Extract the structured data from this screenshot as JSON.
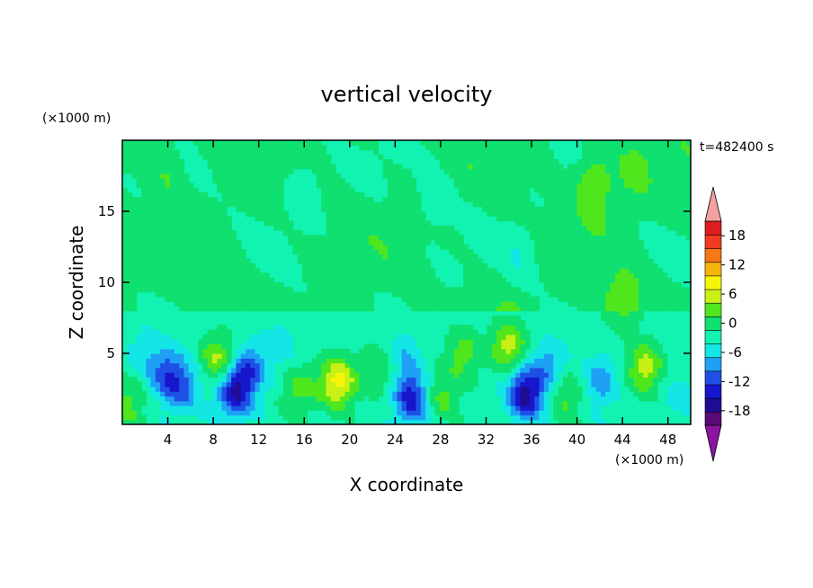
{
  "chart_data": {
    "type": "heatmap",
    "title": "vertical velocity",
    "xlabel": "X coordinate",
    "ylabel": "Z coordinate",
    "x_unit": "(×1000 m)",
    "y_unit": "(×1000 m)",
    "time_label": "t=482400 s",
    "xlim": [
      0,
      50
    ],
    "ylim": [
      0,
      20
    ],
    "x_ticks": [
      4,
      8,
      12,
      16,
      20,
      24,
      28,
      32,
      36,
      40,
      44,
      48
    ],
    "y_ticks": [
      5,
      10,
      15
    ],
    "colorbar": {
      "levels": [
        -21,
        -18,
        -15,
        -12,
        -9,
        -6,
        -3,
        0,
        3,
        6,
        9,
        12,
        15,
        18,
        21
      ],
      "tick_labels": [
        "18",
        "12",
        "6",
        "0",
        "-6",
        "-12",
        "-18"
      ],
      "tick_values": [
        18,
        12,
        6,
        0,
        -6,
        -12,
        -18
      ],
      "colors": [
        "#5a0a78",
        "#1e0c94",
        "#1616cc",
        "#1e50e6",
        "#1ea0f5",
        "#14e6e6",
        "#12f2b0",
        "#0fe070",
        "#50e61e",
        "#c8f014",
        "#f5f50a",
        "#f5b40a",
        "#f57814",
        "#f03c1e",
        "#dc1e1e"
      ],
      "under_color": "#8c14a0",
      "over_color": "#f5a0a0"
    },
    "features": [
      {
        "x": 4.0,
        "z": 3.5,
        "w": -9
      },
      {
        "x": 5.5,
        "z": 2.5,
        "w": -6
      },
      {
        "x": 8.5,
        "z": 4.5,
        "w": 9
      },
      {
        "x": 9.8,
        "z": 2.2,
        "w": -12
      },
      {
        "x": 11.0,
        "z": 3.8,
        "w": -9
      },
      {
        "x": 15.5,
        "z": 2.5,
        "w": 6
      },
      {
        "x": 19.0,
        "z": 3.0,
        "w": 12
      },
      {
        "x": 23.0,
        "z": 4.0,
        "w": 6
      },
      {
        "x": 25.5,
        "z": 1.8,
        "w": -12
      },
      {
        "x": 24.5,
        "z": 4.5,
        "w": -6
      },
      {
        "x": 28.0,
        "z": 2.0,
        "w": 6
      },
      {
        "x": 30.0,
        "z": 5.0,
        "w": 6
      },
      {
        "x": 34.0,
        "z": 5.5,
        "w": 9
      },
      {
        "x": 35.5,
        "z": 2.2,
        "w": -15
      },
      {
        "x": 37.5,
        "z": 4.0,
        "w": -6
      },
      {
        "x": 39.0,
        "z": 2.0,
        "w": 6
      },
      {
        "x": 42.0,
        "z": 3.0,
        "w": -6
      },
      {
        "x": 46.0,
        "z": 4.0,
        "w": 9
      },
      {
        "x": 49.0,
        "z": 2.0,
        "w": -3
      },
      {
        "x": 0.5,
        "z": 1.5,
        "w": 6
      },
      {
        "x": 2.0,
        "z": 5.0,
        "w": -3
      },
      {
        "x": 14.0,
        "z": 5.5,
        "w": -3
      },
      {
        "x": 44.0,
        "z": 8.5,
        "w": 6
      },
      {
        "x": 41.5,
        "z": 17.0,
        "w": 6
      },
      {
        "x": 45.0,
        "z": 18.0,
        "w": 3
      },
      {
        "x": 27.5,
        "z": 16.0,
        "w": -3
      },
      {
        "x": 16.0,
        "z": 17.0,
        "w": -3
      },
      {
        "x": 4.0,
        "z": 18.0,
        "w": 3
      },
      {
        "x": 35.0,
        "z": 12.0,
        "w": -3
      }
    ]
  }
}
